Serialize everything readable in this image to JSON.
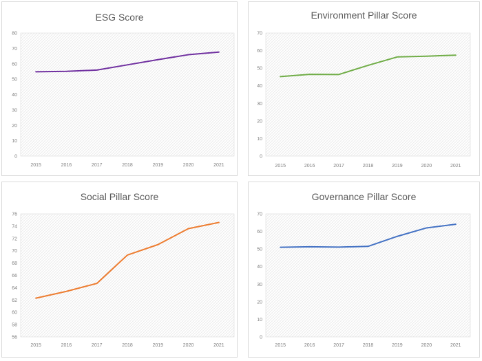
{
  "chart_data": [
    {
      "type": "line",
      "title": "ESG Score",
      "categories": [
        "2015",
        "2016",
        "2017",
        "2018",
        "2019",
        "2020",
        "2021"
      ],
      "series": [
        {
          "values": [
            54.8,
            55.1,
            55.9,
            59.3,
            62.7,
            65.9,
            67.6
          ],
          "color": "#7030a0"
        }
      ],
      "ylim": [
        0,
        80
      ],
      "yticks": [
        "0",
        "10",
        "20",
        "30",
        "40",
        "50",
        "60",
        "70",
        "80"
      ],
      "xlabel": "",
      "ylabel": "",
      "grid": "hatched plot area",
      "legend": "none"
    },
    {
      "type": "line",
      "title": "Environment Pillar Score",
      "categories": [
        "2015",
        "2016",
        "2017",
        "2018",
        "2019",
        "2020",
        "2021"
      ],
      "series": [
        {
          "values": [
            45.2,
            46.5,
            46.4,
            51.6,
            56.4,
            56.8,
            57.4
          ],
          "color": "#70ad47"
        }
      ],
      "ylim": [
        0,
        70
      ],
      "yticks": [
        "0",
        "10",
        "20",
        "30",
        "40",
        "50",
        "60",
        "70"
      ],
      "xlabel": "",
      "ylabel": "",
      "grid": "hatched plot area",
      "legend": "none"
    },
    {
      "type": "line",
      "title": "Social Pillar Score",
      "categories": [
        "2015",
        "2016",
        "2017",
        "2018",
        "2019",
        "2020",
        "2021"
      ],
      "series": [
        {
          "values": [
            62.3,
            63.4,
            64.7,
            69.3,
            71.0,
            73.6,
            74.6
          ],
          "color": "#ed7d31"
        }
      ],
      "ylim": [
        56,
        76
      ],
      "yticks": [
        "56",
        "58",
        "60",
        "62",
        "64",
        "66",
        "68",
        "70",
        "72",
        "74",
        "76"
      ],
      "xlabel": "",
      "ylabel": "",
      "grid": "hatched plot area",
      "legend": "none"
    },
    {
      "type": "line",
      "title": "Governance Pillar Score",
      "categories": [
        "2015",
        "2016",
        "2017",
        "2018",
        "2019",
        "2020",
        "2021"
      ],
      "series": [
        {
          "values": [
            51.0,
            51.3,
            51.1,
            51.5,
            57.2,
            62.0,
            64.1
          ],
          "color": "#4472c4"
        }
      ],
      "ylim": [
        0,
        70
      ],
      "yticks": [
        "0",
        "10",
        "20",
        "30",
        "40",
        "50",
        "60",
        "70"
      ],
      "xlabel": "",
      "ylabel": "",
      "grid": "hatched plot area",
      "legend": "none"
    }
  ]
}
